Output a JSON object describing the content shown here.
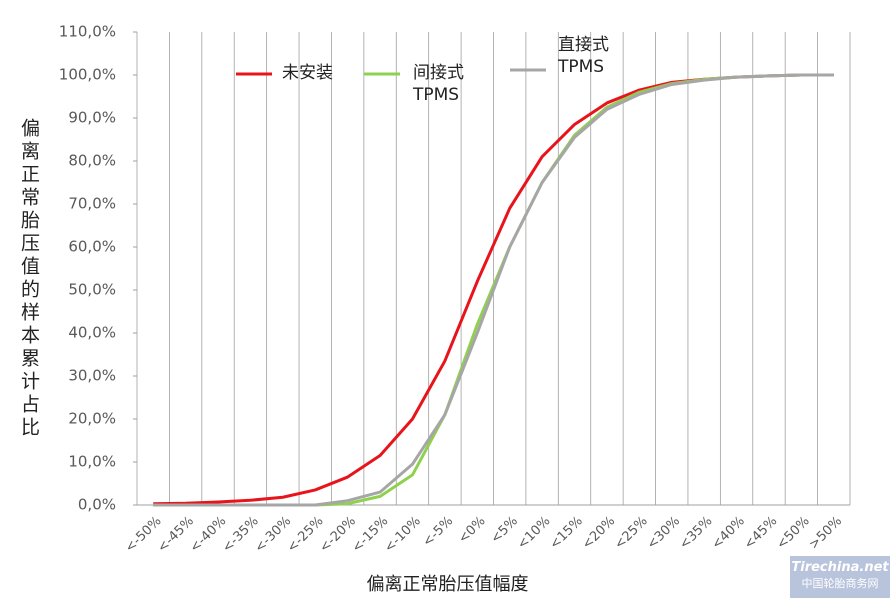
{
  "chart_data": {
    "type": "line",
    "x_label": "偏离正常胎压值幅度",
    "y_label": "偏离正常胎压值的样本累计占比",
    "categories": [
      "<-50%",
      "<-45%",
      "<-40%",
      "<-35%",
      "<-30%",
      "<-25%",
      "<-20%",
      "<-15%",
      "<-10%",
      "<-5%",
      "<0%",
      "<5%",
      "<10%",
      "<15%",
      "<20%",
      "<25%",
      "<30%",
      "<35%",
      "<40%",
      "<45%",
      "<50%",
      ">50%"
    ],
    "series": [
      {
        "name": "未安装",
        "color": "#e8141b",
        "values": [
          0.3,
          0.4,
          0.7,
          1.1,
          1.8,
          3.5,
          6.5,
          11.5,
          20,
          33.5,
          52,
          69,
          81,
          88.5,
          93.5,
          96.5,
          98.3,
          99,
          99.5,
          99.8,
          100,
          100
        ]
      },
      {
        "name": "间接式\nTPMS",
        "color": "#8fd14f",
        "values": [
          0,
          0,
          0,
          0,
          0,
          0,
          0.3,
          2,
          7,
          21,
          42,
          60,
          75,
          86,
          92.5,
          96,
          98,
          99,
          99.5,
          99.8,
          100,
          100
        ]
      },
      {
        "name": "直接式\nTPMS",
        "color": "#a6a6a6",
        "values": [
          0,
          0,
          0,
          0,
          0,
          0,
          1,
          3,
          9.5,
          21,
          40,
          60,
          75,
          85.5,
          92,
          95.5,
          97.8,
          98.8,
          99.5,
          99.8,
          100,
          100
        ]
      }
    ],
    "ylim": [
      0,
      110
    ],
    "yticks": [
      {
        "value": 0,
        "label": "0,0%"
      },
      {
        "value": 10,
        "label": "10,0%"
      },
      {
        "value": 20,
        "label": "20,0%"
      },
      {
        "value": 30,
        "label": "30,0%"
      },
      {
        "value": 40,
        "label": "40,0%"
      },
      {
        "value": 50,
        "label": "50,0%"
      },
      {
        "value": 60,
        "label": "60,0%"
      },
      {
        "value": 70,
        "label": "70,0%"
      },
      {
        "value": 80,
        "label": "80,0%"
      },
      {
        "value": 90,
        "label": "90,0%"
      },
      {
        "value": 100,
        "label": "100,0%"
      },
      {
        "value": 110,
        "label": "110,0%"
      }
    ],
    "watermark": [
      "Tirechina",
      ".net",
      "中国轮胎商务网"
    ]
  }
}
